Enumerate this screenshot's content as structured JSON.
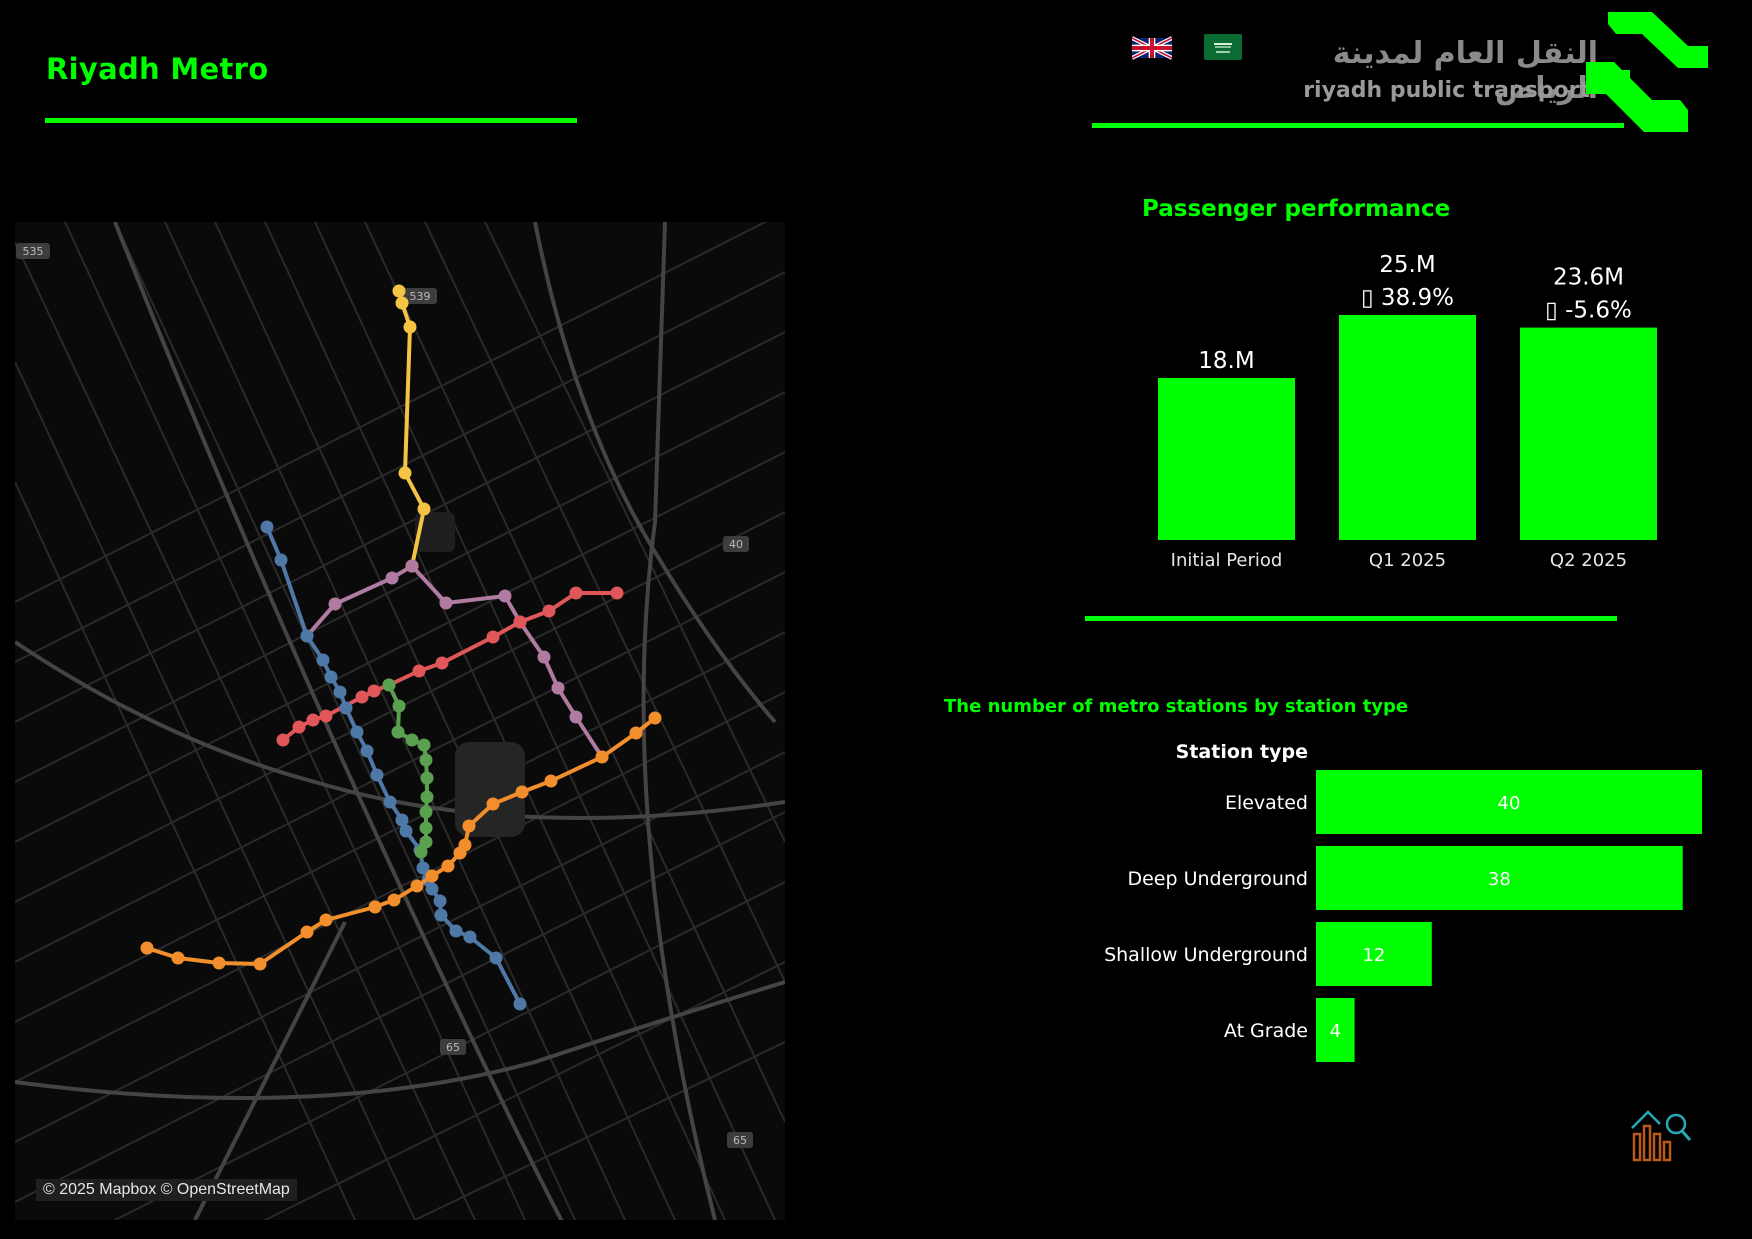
{
  "header": {
    "title": "Riyadh Metro",
    "logo_arabic": "النقل العام لمدينة الرياض",
    "logo_english": "riyadh public transport",
    "accent_color": "#00ff00",
    "language_options": [
      "English (UK flag)",
      "Arabic (Saudi flag)"
    ]
  },
  "map": {
    "attribution": "© 2025 Mapbox © OpenStreetMap",
    "road_labels": [
      "535",
      "539",
      "40",
      "65",
      "65"
    ],
    "line_colors": {
      "yellow": "#f6c444",
      "purple": "#b07aa1",
      "red": "#e15759",
      "blue": "#4e79a7",
      "green": "#59a14f",
      "orange": "#f28e2b"
    }
  },
  "passenger": {
    "title": "Passenger performance",
    "chart_data": {
      "type": "bar",
      "categories": [
        "Initial Period",
        "Q1 2025",
        "Q2 2025"
      ],
      "values": [
        18.0,
        25.0,
        23.6
      ],
      "value_labels": [
        "18.M",
        "25.M",
        "23.6M"
      ],
      "change_labels": [
        "",
        "38.9%",
        "-5.6%"
      ],
      "change_glyph": "▯",
      "unit": "M",
      "ylim": [
        0,
        25
      ]
    }
  },
  "stations": {
    "title": "The number of metro stations by station type",
    "chart_data": {
      "type": "bar",
      "orientation": "horizontal",
      "header": "Station type",
      "categories": [
        "Elevated",
        "Deep Underground",
        "Shallow Underground",
        "At Grade"
      ],
      "values": [
        40,
        38,
        12,
        4
      ],
      "xlim": [
        0,
        40
      ]
    }
  }
}
